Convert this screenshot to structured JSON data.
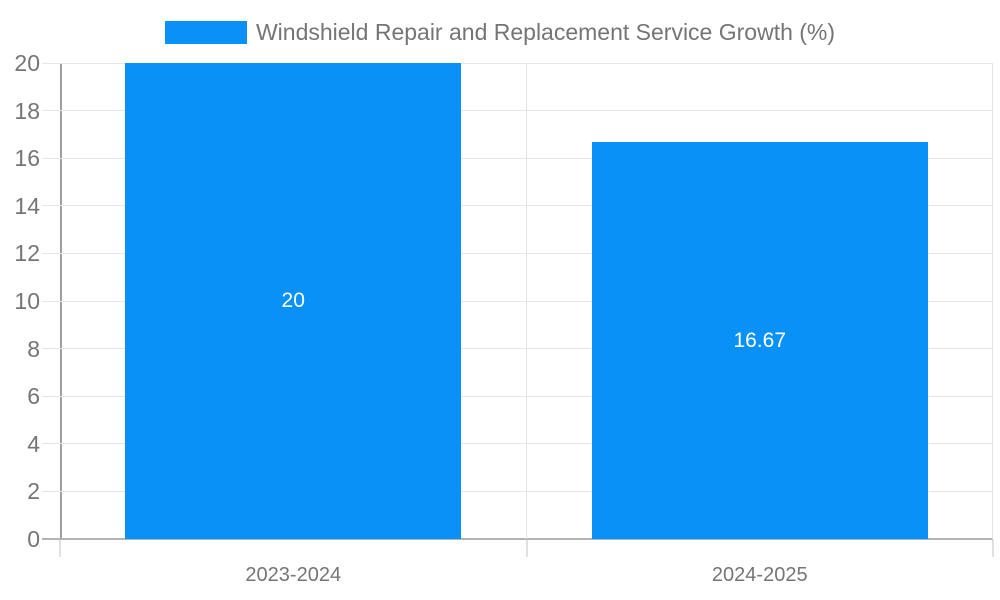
{
  "chart_data": {
    "type": "bar",
    "title": "Windshield Repair and Replacement Service Growth (%)",
    "categories": [
      "2023-2024",
      "2024-2025"
    ],
    "series": [
      {
        "name": "Windshield Repair and Replacement Service Growth (%)",
        "values": [
          20,
          16.67
        ],
        "value_labels": [
          "20",
          "16.67"
        ]
      }
    ],
    "xlabel": "",
    "ylabel": "",
    "ylim": [
      0,
      20
    ],
    "ytick_step": 2,
    "yticks": [
      0,
      2,
      4,
      6,
      8,
      10,
      12,
      14,
      16,
      18,
      20
    ],
    "grid": true,
    "legend_position": "top-center",
    "colors": {
      "bar": "#0991f8",
      "grid": "#e6e6e6",
      "separator": "#e3e3e3",
      "axis_line": "#9e9e9e",
      "baseline": "#b3b3b3",
      "tick": "#e0e0e0",
      "text": "#757575",
      "bar_label": "#ffffff",
      "background": "#ffffff"
    }
  }
}
